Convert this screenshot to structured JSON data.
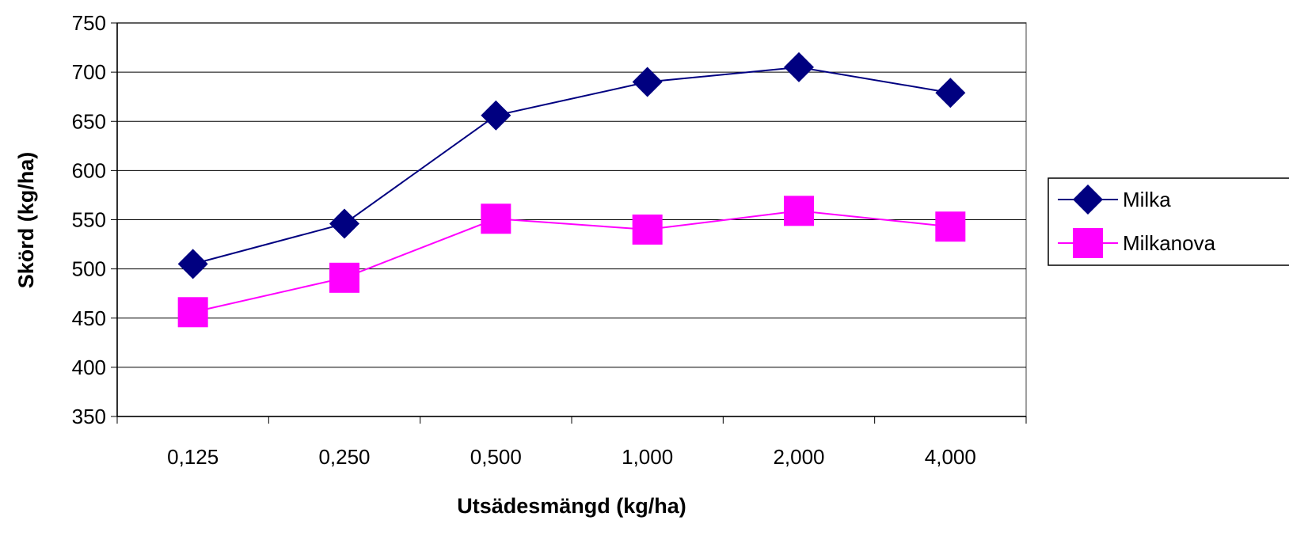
{
  "chart_data": {
    "type": "line",
    "title": "",
    "xlabel": "Utsädesmängd (kg/ha)",
    "ylabel": "Skörd (kg/ha)",
    "categories": [
      "0,125",
      "0,250",
      "0,500",
      "1,000",
      "2,000",
      "4,000"
    ],
    "y_ticks": [
      "350",
      "400",
      "450",
      "500",
      "550",
      "600",
      "650",
      "700",
      "750"
    ],
    "ylim": [
      350,
      750
    ],
    "grid": "horizontal",
    "legend_position": "right",
    "series": [
      {
        "name": "Milka",
        "values": [
          505,
          546,
          656,
          690,
          705,
          679
        ],
        "color": "#000080",
        "marker": "diamond"
      },
      {
        "name": "Milkanova",
        "values": [
          456,
          491,
          551,
          540,
          559,
          543
        ],
        "color": "#FF00FF",
        "marker": "square"
      }
    ]
  }
}
